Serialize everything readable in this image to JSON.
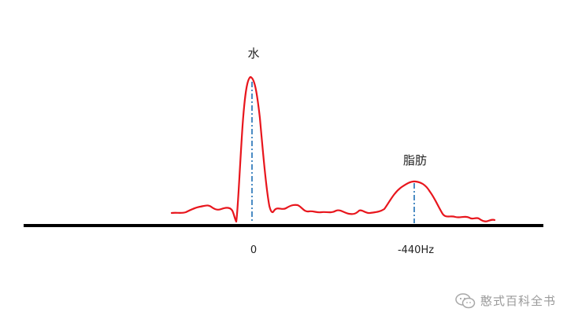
{
  "labels": {
    "water": "水",
    "fat": "脂肪",
    "tick_zero": "0",
    "tick_fat": "-440Hz"
  },
  "watermark": {
    "text": "憨式百科全书"
  },
  "colors": {
    "spectrum": "#e8161d",
    "marker": "#1f6fb5",
    "baseline": "#000000",
    "watermark": "#9a9a9a"
  },
  "icons": {
    "watermark_icon": "wechat-icon"
  }
}
